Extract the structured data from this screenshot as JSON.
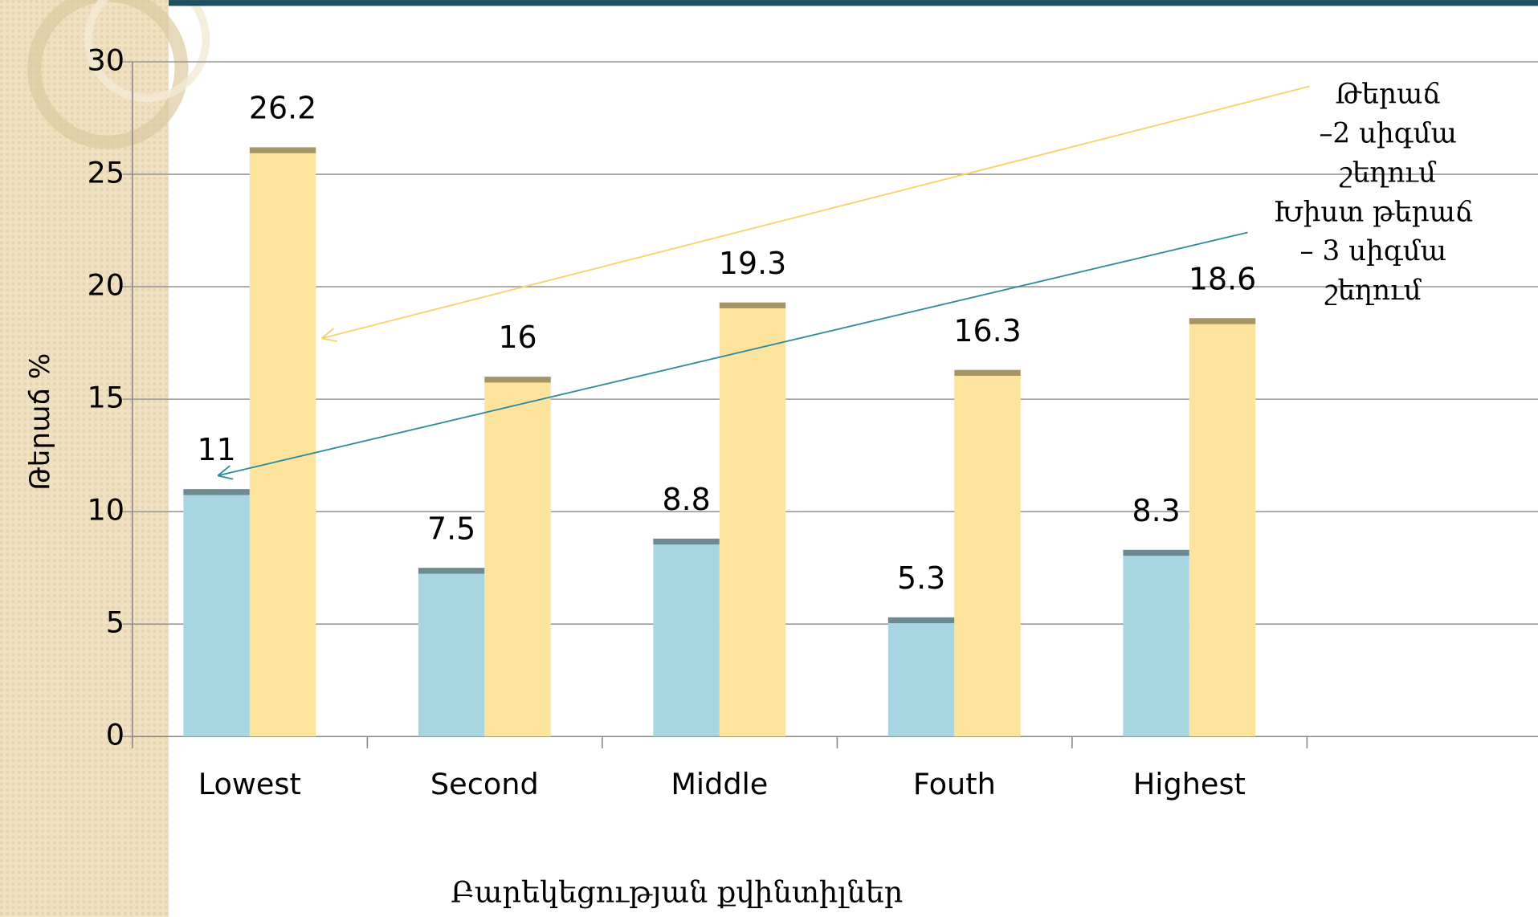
{
  "chart_data": {
    "type": "bar",
    "categories": [
      "Lowest",
      "Second",
      "Middle",
      "Fouth",
      "Highest"
    ],
    "series": [
      {
        "color": "#a8d5e2",
        "values": [
          11,
          7.5,
          8.8,
          5.3,
          8.3
        ]
      },
      {
        "color": "#fde49c",
        "values": [
          26.2,
          16,
          19.3,
          16.3,
          18.6
        ]
      }
    ],
    "ylim": [
      0,
      30
    ],
    "yticks": [
      0,
      5,
      10,
      15,
      20,
      25,
      30
    ],
    "grid": true,
    "y_label": "Թերաճ %",
    "x_label": "Բարեկեցության քվինտիլներ",
    "annotations": [
      {
        "lines": [
          "Թերաճ",
          "–2 սիգմա",
          "շեղում"
        ],
        "color": "#f5d36a"
      },
      {
        "lines": [
          "Խիստ թերաճ",
          "– 3 սիգմա",
          "շեղում"
        ],
        "color": "#2f8a9a"
      }
    ]
  }
}
